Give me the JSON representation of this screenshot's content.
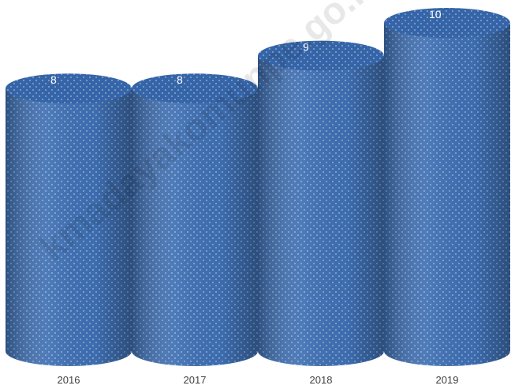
{
  "chart_data": {
    "type": "bar",
    "shape": "cylinder",
    "categories": [
      "2016",
      "2017",
      "2018",
      "2019"
    ],
    "values": [
      8,
      8,
      9,
      10
    ],
    "title": "",
    "xlabel": "",
    "ylabel": "",
    "ylim": [
      0,
      10
    ],
    "grid": false,
    "legend": "none",
    "data_labels": true
  },
  "colors": {
    "bar_fill": "#3e6fb3",
    "bar_top": "#3565a8",
    "label_text": "#ffffff",
    "tick_text": "#404040"
  },
  "watermark": "kmadayakomunpe.go.id"
}
